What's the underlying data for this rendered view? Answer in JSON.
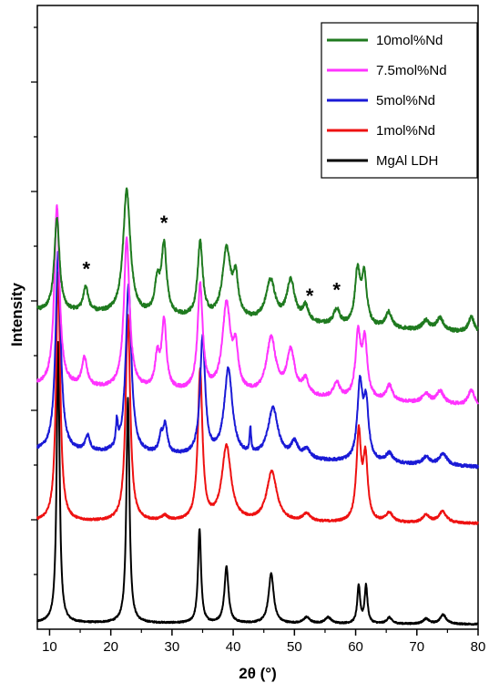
{
  "chart_data": {
    "type": "line",
    "title": "",
    "xlabel": "2θ (°)",
    "ylabel": "Intensity",
    "xlim": [
      8,
      80
    ],
    "x_ticks": [
      10,
      20,
      30,
      40,
      50,
      60,
      70,
      80
    ],
    "y_tick_labels": "none",
    "grid": false,
    "legend_position": "top-right",
    "legend": [
      {
        "name": "10mol%Nd",
        "color": "#1f7a1f"
      },
      {
        "name": "7.5mol%Nd",
        "color": "#ff33ff"
      },
      {
        "name": "5mol%Nd",
        "color": "#1a1ad6"
      },
      {
        "name": "1mol%Nd",
        "color": "#ee1111"
      },
      {
        "name": "MgAl LDH",
        "color": "#000000"
      }
    ],
    "annotations": [
      {
        "text": "*",
        "x": 16.0
      },
      {
        "text": "*",
        "x": 28.7
      },
      {
        "text": "*",
        "x": 52.5
      },
      {
        "text": "*",
        "x": 56.9
      }
    ],
    "series": [
      {
        "name": "MgAl LDH",
        "color": "#000000",
        "offset": 0,
        "baseline": 1.0,
        "slope": -0.003,
        "noise": 0.25,
        "peaks": [
          [
            11.4,
            45,
            0.28
          ],
          [
            22.8,
            36,
            0.3
          ],
          [
            34.5,
            15,
            0.3
          ],
          [
            38.9,
            9,
            0.4
          ],
          [
            46.2,
            8,
            0.5
          ],
          [
            52.0,
            1,
            0.6
          ],
          [
            55.5,
            1,
            0.6
          ],
          [
            60.5,
            6,
            0.28
          ],
          [
            61.7,
            6,
            0.28
          ],
          [
            65.5,
            1,
            0.5
          ],
          [
            71.5,
            0.8,
            0.6
          ],
          [
            74.3,
            1.5,
            0.6
          ]
        ]
      },
      {
        "name": "1mol%Nd",
        "color": "#ee1111",
        "offset": 16,
        "baseline": 1.2,
        "slope": -0.004,
        "noise": 0.35,
        "peaks": [
          [
            11.4,
            40,
            0.4
          ],
          [
            22.8,
            33,
            0.45
          ],
          [
            28.8,
            0.8,
            0.6
          ],
          [
            34.6,
            24,
            0.45
          ],
          [
            38.9,
            12,
            0.9
          ],
          [
            46.3,
            8,
            1.0
          ],
          [
            52.0,
            1.2,
            0.8
          ],
          [
            60.5,
            14,
            0.45
          ],
          [
            61.6,
            10,
            0.45
          ],
          [
            65.5,
            1.5,
            0.7
          ],
          [
            71.5,
            1.2,
            0.7
          ],
          [
            74.2,
            1.8,
            0.8
          ]
        ]
      },
      {
        "name": "5mol%Nd",
        "color": "#1a1ad6",
        "offset": 26,
        "baseline": 2.5,
        "slope": -0.035,
        "noise": 0.5,
        "peaks": [
          [
            11.4,
            32,
            0.5
          ],
          [
            16.2,
            2.5,
            0.45
          ],
          [
            21.0,
            4,
            0.18
          ],
          [
            22.9,
            27,
            0.55
          ],
          [
            28.2,
            2.5,
            0.4
          ],
          [
            28.9,
            4.5,
            0.4
          ],
          [
            35.0,
            19,
            0.5
          ],
          [
            39.2,
            14,
            0.8
          ],
          [
            42.8,
            4,
            0.15
          ],
          [
            46.5,
            8,
            1.0
          ],
          [
            50.0,
            2.5,
            0.7
          ],
          [
            52.0,
            1.5,
            0.7
          ],
          [
            60.7,
            12,
            0.5
          ],
          [
            61.7,
            9,
            0.5
          ],
          [
            65.5,
            1.5,
            0.7
          ],
          [
            71.5,
            1.2,
            0.7
          ],
          [
            74.3,
            1.8,
            0.8
          ]
        ]
      },
      {
        "name": "7.5mol%Nd",
        "color": "#ff33ff",
        "offset": 36,
        "baseline": 3.0,
        "slope": -0.045,
        "noise": 0.55,
        "peaks": [
          [
            11.2,
            29,
            0.5
          ],
          [
            15.7,
            4.5,
            0.5
          ],
          [
            22.6,
            24,
            0.55
          ],
          [
            27.6,
            5,
            0.45
          ],
          [
            28.7,
            11,
            0.45
          ],
          [
            34.6,
            17,
            0.5
          ],
          [
            38.9,
            14,
            0.8
          ],
          [
            40.4,
            6,
            0.5
          ],
          [
            46.2,
            9,
            0.9
          ],
          [
            49.4,
            7,
            0.8
          ],
          [
            51.8,
            2.5,
            0.6
          ],
          [
            56.9,
            2.5,
            0.6
          ],
          [
            60.4,
            10,
            0.5
          ],
          [
            61.5,
            9,
            0.5
          ],
          [
            65.5,
            2.5,
            0.6
          ],
          [
            71.5,
            1.5,
            0.7
          ],
          [
            73.8,
            2,
            0.7
          ],
          [
            78.9,
            2.5,
            0.6
          ]
        ]
      },
      {
        "name": "10mol%Nd",
        "color": "#1f7a1f",
        "offset": 48,
        "baseline": 3.0,
        "slope": -0.05,
        "noise": 0.6,
        "peaks": [
          [
            11.2,
            15,
            0.5
          ],
          [
            15.9,
            4,
            0.5
          ],
          [
            22.6,
            20,
            0.7
          ],
          [
            27.6,
            5,
            0.5
          ],
          [
            28.7,
            11,
            0.5
          ],
          [
            34.6,
            12,
            0.5
          ],
          [
            38.9,
            11,
            0.8
          ],
          [
            40.4,
            6,
            0.5
          ],
          [
            46.1,
            6.5,
            0.9
          ],
          [
            49.4,
            6.5,
            0.8
          ],
          [
            51.8,
            2.5,
            0.6
          ],
          [
            56.9,
            2.5,
            0.6
          ],
          [
            60.3,
            8.5,
            0.5
          ],
          [
            61.4,
            8,
            0.5
          ],
          [
            65.4,
            2.5,
            0.6
          ],
          [
            71.5,
            1.5,
            0.7
          ],
          [
            73.8,
            2,
            0.7
          ],
          [
            78.9,
            2.5,
            0.6
          ]
        ]
      }
    ]
  }
}
